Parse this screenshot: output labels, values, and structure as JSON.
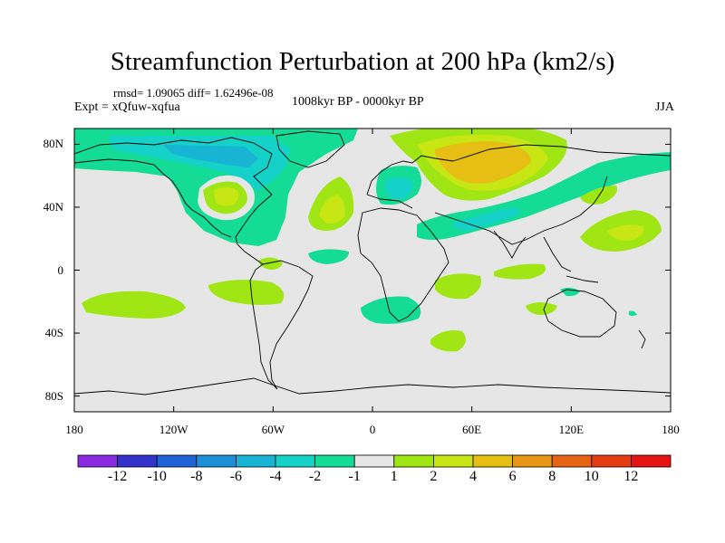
{
  "header": {
    "title": "Streamfunction Perturbation at 200 hPa (km2/s)",
    "stats": "rmsd= 1.09065 diff= 1.62496e-08",
    "expt": "Expt = xQfuw-xqfua",
    "period": "1008kyr BP - 0000kyr BP",
    "season": "JJA"
  },
  "axes": {
    "lat_labels": [
      "80N",
      "40N",
      "0",
      "40S",
      "80S"
    ],
    "lat_values": [
      80,
      40,
      0,
      -40,
      -80
    ],
    "lon_labels": [
      "180",
      "120W",
      "60W",
      "0",
      "60E",
      "120E",
      "180"
    ],
    "lon_values": [
      -180,
      -120,
      -60,
      0,
      60,
      120,
      180
    ]
  },
  "colorbar": {
    "levels": [
      "-12",
      "-10",
      "-8",
      "-6",
      "-4",
      "-2",
      "-1",
      "1",
      "2",
      "4",
      "6",
      "8",
      "10",
      "12"
    ],
    "colors": [
      "#8a2be2",
      "#3333cc",
      "#1e64d8",
      "#1b90d8",
      "#18b4d4",
      "#14d2c8",
      "#14dc96",
      "#e6e6e6",
      "#a0e614",
      "#c8e614",
      "#e6be14",
      "#e69614",
      "#e66414",
      "#e63c14",
      "#e61414"
    ]
  },
  "map_colors": {
    "ocean_land_neutral": "#e6e6e6",
    "coastline": "#000000"
  }
}
